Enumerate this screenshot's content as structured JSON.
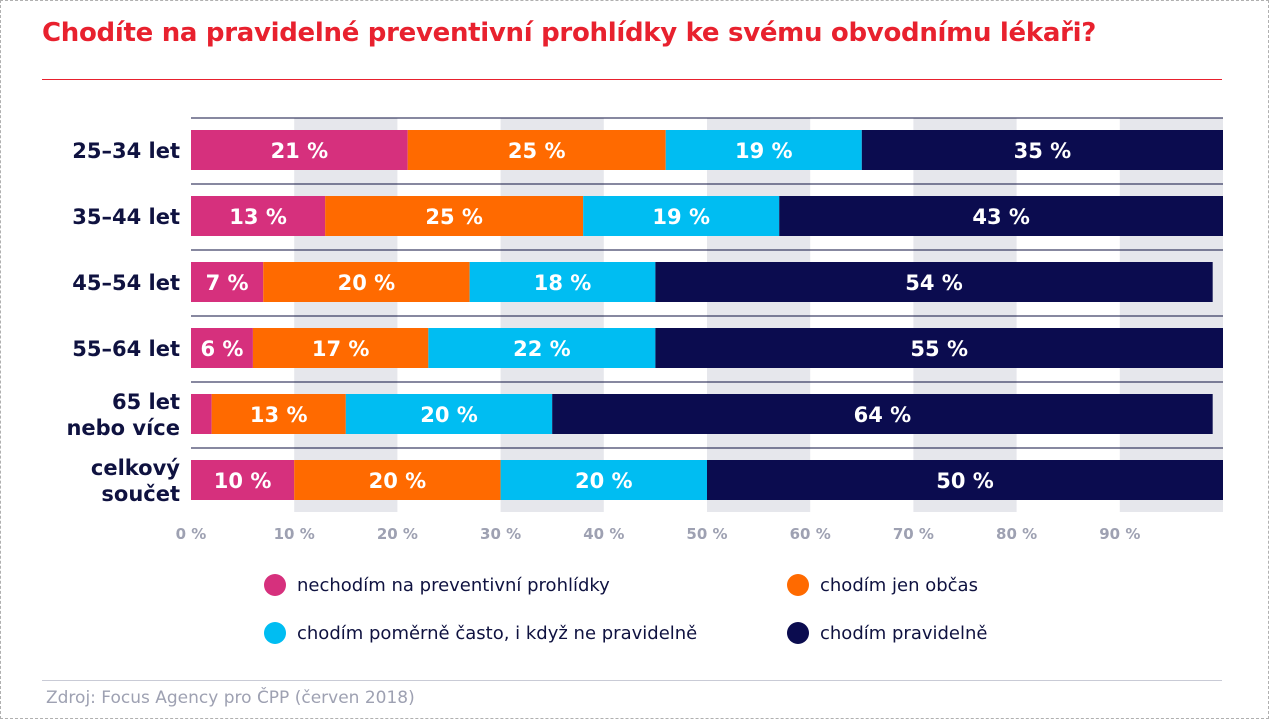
{
  "title": "Chodíte na pravidelné preventivní prohlídky ke svému obvodnímu lékaři?",
  "source": "Zdroj: Focus Agency pro ČPP (červen 2018)",
  "colors": {
    "title": "#e8212e",
    "series": [
      "#d6307d",
      "#ff6a00",
      "#00bdf2",
      "#0b0c4f"
    ],
    "axis_text": "#9ea1b2",
    "category_text": "#0f1240"
  },
  "legend": [
    {
      "label": "nechodím na preventivní prohlídky",
      "color": "#d6307d"
    },
    {
      "label": "chodím jen občas",
      "color": "#ff6a00"
    },
    {
      "label": "chodím poměrně často, i když ne pravidelně",
      "color": "#00bdf2"
    },
    {
      "label": "chodím pravidelně",
      "color": "#0b0c4f"
    }
  ],
  "chart_data": {
    "type": "bar",
    "orientation": "horizontal",
    "stacked": true,
    "title": "Chodíte na pravidelné preventivní prohlídky ke svému obvodnímu lékaři?",
    "categories": [
      [
        "25–34 let"
      ],
      [
        "35–44 let"
      ],
      [
        "45–54 let"
      ],
      [
        "55–64 let"
      ],
      [
        "65 let",
        "nebo více"
      ],
      [
        "celkový",
        "součet"
      ]
    ],
    "series": [
      {
        "name": "nechodím na preventivní prohlídky",
        "values": [
          21,
          13,
          7,
          6,
          2,
          10
        ],
        "labels": [
          "21 %",
          "13 %",
          "7 %",
          "6 %",
          "",
          "10 %"
        ]
      },
      {
        "name": "chodím jen občas",
        "values": [
          25,
          25,
          20,
          17,
          13,
          20
        ],
        "labels": [
          "25 %",
          "25 %",
          "20 %",
          "17 %",
          "13 %",
          "20 %"
        ]
      },
      {
        "name": "chodím poměrně často, i když ne pravidelně",
        "values": [
          19,
          19,
          18,
          22,
          20,
          20
        ],
        "labels": [
          "19 %",
          "19 %",
          "18 %",
          "22 %",
          "20 %",
          "20 %"
        ]
      },
      {
        "name": "chodím pravidelně",
        "values": [
          35,
          43,
          54,
          55,
          64,
          50
        ],
        "labels": [
          "35 %",
          "43 %",
          "54 %",
          "55 %",
          "64 %",
          "50 %"
        ]
      }
    ],
    "xlim": [
      0,
      100
    ],
    "xticks": [
      "0 %",
      "10 %",
      "20 %",
      "30 %",
      "40 %",
      "50 %",
      "60 %",
      "70 %",
      "80 %",
      "90 %"
    ],
    "grid": "alternating vertical bands",
    "legend_position": "bottom"
  }
}
